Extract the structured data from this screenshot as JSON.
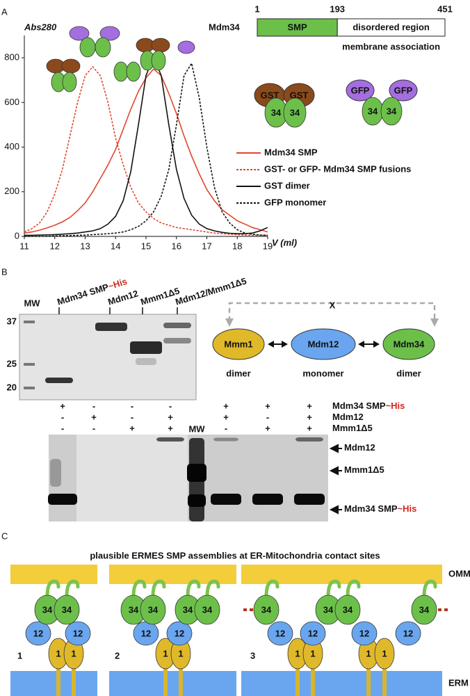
{
  "panel_labels": [
    "A",
    "B",
    "C"
  ],
  "chart_data": {
    "type": "line",
    "y_label": "Abs280",
    "x_label": "V (ml)",
    "x": [
      11,
      11.25,
      11.5,
      11.75,
      12,
      12.25,
      12.5,
      12.75,
      13,
      13.25,
      13.5,
      13.75,
      14,
      14.25,
      14.5,
      14.75,
      15,
      15.25,
      15.5,
      15.75,
      16,
      16.25,
      16.5,
      16.75,
      17,
      17.25,
      17.5,
      17.75,
      18,
      18.25,
      18.5,
      18.75,
      19
    ],
    "xlim": [
      11,
      19
    ],
    "xticks": [
      11,
      12,
      13,
      14,
      15,
      16,
      17,
      18,
      19
    ],
    "ylim": [
      0,
      900
    ],
    "yticks": [
      0,
      200,
      400,
      600,
      800
    ],
    "series": [
      {
        "name": "Mdm34 SMP",
        "color": "#e0462e",
        "label_color": "#3fa535",
        "dash": false,
        "values": [
          15,
          20,
          28,
          38,
          50,
          65,
          85,
          115,
          150,
          200,
          260,
          320,
          390,
          480,
          570,
          650,
          710,
          750,
          720,
          640,
          550,
          450,
          360,
          280,
          210,
          160,
          120,
          95,
          70,
          55,
          40,
          30,
          20
        ]
      },
      {
        "name": "GST- or GFP- Mdm34 SMP fusions",
        "color": "#e0462e",
        "label_color": "#8a5a2b",
        "dash": true,
        "values": [
          20,
          35,
          60,
          110,
          190,
          300,
          450,
          600,
          720,
          760,
          720,
          600,
          440,
          320,
          220,
          150,
          110,
          80,
          60,
          50,
          40,
          35,
          30,
          25,
          20,
          15,
          12,
          10,
          8,
          6,
          5,
          5,
          5
        ]
      },
      {
        "name": "GST dimer",
        "color": "#111111",
        "label_color": "#8a5a2b",
        "dash": false,
        "values": [
          5,
          5,
          6,
          7,
          8,
          10,
          12,
          15,
          20,
          25,
          35,
          55,
          90,
          160,
          290,
          500,
          720,
          805,
          720,
          500,
          300,
          170,
          95,
          55,
          35,
          25,
          18,
          14,
          12,
          12,
          15,
          25,
          40
        ]
      },
      {
        "name": "GFP monomer",
        "color": "#111111",
        "label_color": "#b46ee0",
        "dash": true,
        "values": [
          0,
          0,
          0,
          0,
          2,
          3,
          4,
          5,
          6,
          8,
          10,
          12,
          15,
          20,
          30,
          45,
          70,
          110,
          180,
          300,
          500,
          720,
          775,
          620,
          400,
          220,
          110,
          60,
          30,
          15,
          10,
          6,
          5
        ]
      }
    ]
  },
  "domain_map": {
    "protein": "Mdm34",
    "start": 1,
    "boundary": 193,
    "end": 451,
    "smp": "SMP",
    "disordered": "disordered region",
    "note": "membrane association"
  },
  "fusion_diagrams": {
    "gst": [
      "GST",
      "GST",
      "34",
      "34"
    ],
    "gfp": [
      "GFP",
      "GFP",
      "34",
      "34"
    ]
  },
  "gel_top": {
    "mw": "MW",
    "markers": [
      37,
      25,
      20
    ],
    "lanes": [
      {
        "name": "Mdm34 SMP",
        "tag": "~His"
      },
      {
        "name": "Mdm12"
      },
      {
        "name": "Mmm1Δ5"
      },
      {
        "name": "Mdm12/Mmm1Δ5"
      }
    ]
  },
  "interaction": {
    "x": "X",
    "nodes": [
      {
        "label": "Mmm1",
        "state": "dimer"
      },
      {
        "label": "Mdm12",
        "state": "monomer"
      },
      {
        "label": "Mdm34",
        "state": "dimer"
      }
    ]
  },
  "pulldown": {
    "mw": "MW",
    "rows": [
      {
        "name": "Mdm34 SMP",
        "tag": "~His",
        "signs": [
          "+",
          "-",
          "-",
          "-",
          "+",
          "+",
          "+"
        ]
      },
      {
        "name": "Mdm12",
        "signs": [
          "-",
          "+",
          "-",
          "+",
          "+",
          "-",
          "+"
        ]
      },
      {
        "name": "Mmm1Δ5",
        "signs": [
          "-",
          "-",
          "+",
          "+",
          "-",
          "+",
          "+"
        ]
      }
    ],
    "bands": [
      {
        "name": "Mdm12"
      },
      {
        "name": "Mmm1Δ5"
      },
      {
        "name": "Mdm34 SMP",
        "tag": "~His"
      }
    ]
  },
  "assemblies": {
    "title": "plausible ERMES SMP assemblies at ER-Mitochondria contact sites",
    "omm": "OMM",
    "erm": "ERM",
    "models": [
      "1",
      "2",
      "3"
    ],
    "subunits": {
      "mdm34": "34",
      "mdm12": "12",
      "mmm1": "1"
    }
  }
}
